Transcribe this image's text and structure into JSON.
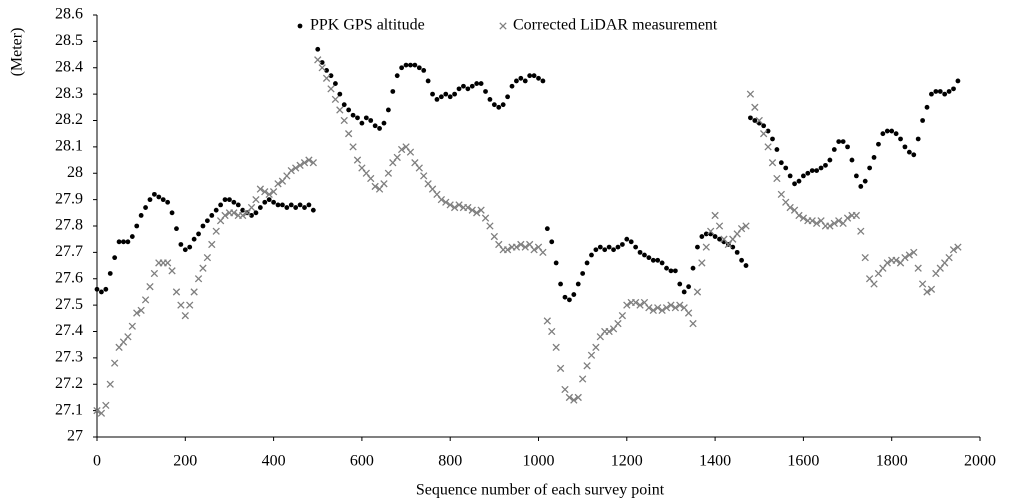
{
  "chart_data": {
    "type": "scatter",
    "x_label": "Sequence number of each survey point",
    "y_label": "(Meter)",
    "xlim": [
      0,
      2000
    ],
    "xticks": [
      0,
      200,
      400,
      600,
      800,
      1000,
      1200,
      1400,
      1600,
      1800,
      2000
    ],
    "ylim": [
      27,
      28.6
    ],
    "yticks": [
      27,
      27.1,
      27.2,
      27.3,
      27.4,
      27.5,
      27.6,
      27.7,
      27.8,
      27.9,
      28,
      28.1,
      28.2,
      28.3,
      28.4,
      28.5,
      28.6
    ],
    "legend": "top",
    "x": [
      0,
      10,
      20,
      30,
      40,
      50,
      60,
      70,
      80,
      90,
      100,
      110,
      120,
      130,
      140,
      150,
      160,
      170,
      180,
      190,
      200,
      210,
      220,
      230,
      240,
      250,
      260,
      270,
      280,
      290,
      300,
      310,
      320,
      330,
      340,
      350,
      360,
      370,
      380,
      390,
      400,
      410,
      420,
      430,
      440,
      450,
      460,
      470,
      480,
      490,
      500,
      510,
      520,
      530,
      540,
      550,
      560,
      570,
      580,
      590,
      600,
      610,
      620,
      630,
      640,
      650,
      660,
      670,
      680,
      690,
      700,
      710,
      720,
      730,
      740,
      750,
      760,
      770,
      780,
      790,
      800,
      810,
      820,
      830,
      840,
      850,
      860,
      870,
      880,
      890,
      900,
      910,
      920,
      930,
      940,
      950,
      960,
      970,
      980,
      990,
      1000,
      1010,
      1020,
      1030,
      1040,
      1050,
      1060,
      1070,
      1080,
      1090,
      1100,
      1110,
      1120,
      1130,
      1140,
      1150,
      1160,
      1170,
      1180,
      1190,
      1200,
      1210,
      1220,
      1230,
      1240,
      1250,
      1260,
      1270,
      1280,
      1290,
      1300,
      1310,
      1320,
      1330,
      1340,
      1350,
      1360,
      1370,
      1380,
      1390,
      1400,
      1410,
      1420,
      1430,
      1440,
      1450,
      1460,
      1470,
      1480,
      1490,
      1500,
      1510,
      1520,
      1530,
      1540,
      1550,
      1560,
      1570,
      1580,
      1590,
      1600,
      1610,
      1620,
      1630,
      1640,
      1650,
      1660,
      1670,
      1680,
      1690,
      1700,
      1710,
      1720,
      1730,
      1740,
      1750,
      1760,
      1770,
      1780,
      1790,
      1800,
      1810,
      1820,
      1830,
      1840,
      1850,
      1860,
      1870,
      1880,
      1890,
      1900,
      1910,
      1920,
      1930,
      1940,
      1950
    ],
    "series": [
      {
        "name": "PPK GPS altitude",
        "color": "#000000",
        "marker": "dot",
        "values": [
          27.56,
          27.55,
          27.56,
          27.62,
          27.68,
          27.74,
          27.74,
          27.74,
          27.76,
          27.8,
          27.84,
          27.87,
          27.9,
          27.92,
          27.91,
          27.9,
          27.89,
          27.85,
          27.79,
          27.73,
          27.71,
          27.72,
          27.75,
          27.77,
          27.8,
          27.82,
          27.84,
          27.86,
          27.88,
          27.9,
          27.9,
          27.89,
          27.88,
          27.86,
          27.85,
          27.84,
          27.85,
          27.87,
          27.89,
          27.9,
          27.89,
          27.88,
          27.88,
          27.87,
          27.88,
          27.87,
          27.88,
          27.87,
          27.88,
          27.86,
          28.47,
          28.42,
          28.39,
          28.37,
          28.34,
          28.3,
          28.26,
          28.24,
          28.22,
          28.21,
          28.19,
          28.21,
          28.2,
          28.18,
          28.17,
          28.19,
          28.24,
          28.31,
          28.37,
          28.4,
          28.41,
          28.41,
          28.41,
          28.4,
          28.39,
          28.35,
          28.3,
          28.28,
          28.29,
          28.3,
          28.29,
          28.3,
          28.32,
          28.33,
          28.32,
          28.33,
          28.34,
          28.34,
          28.31,
          28.28,
          28.26,
          28.25,
          28.26,
          28.29,
          28.33,
          28.35,
          28.36,
          28.35,
          28.37,
          28.37,
          28.36,
          28.35,
          27.79,
          27.74,
          27.66,
          27.58,
          27.53,
          27.52,
          27.54,
          27.58,
          27.62,
          27.66,
          27.69,
          27.71,
          27.72,
          27.71,
          27.72,
          27.71,
          27.72,
          27.73,
          27.75,
          27.74,
          27.72,
          27.7,
          27.69,
          27.68,
          27.67,
          27.67,
          27.66,
          27.64,
          27.63,
          27.63,
          27.58,
          27.55,
          27.57,
          27.64,
          27.72,
          27.76,
          27.77,
          27.77,
          27.76,
          27.75,
          27.74,
          27.73,
          27.72,
          27.7,
          27.67,
          27.65,
          28.21,
          28.2,
          28.19,
          28.18,
          28.16,
          28.13,
          28.09,
          28.04,
          28.02,
          27.99,
          27.96,
          27.97,
          27.99,
          28.0,
          28.01,
          28.01,
          28.02,
          28.03,
          28.05,
          28.09,
          28.12,
          28.12,
          28.1,
          28.05,
          27.99,
          27.95,
          27.97,
          28.02,
          28.06,
          28.11,
          28.15,
          28.16,
          28.16,
          28.15,
          28.13,
          28.1,
          28.08,
          28.07,
          28.13,
          28.2,
          28.25,
          28.3,
          28.31,
          28.31,
          28.3,
          28.31,
          28.32,
          28.35
        ]
      },
      {
        "name": "Corrected LiDAR measurement",
        "color": "#7f7f7f",
        "marker": "x",
        "values": [
          27.1,
          27.09,
          27.12,
          27.2,
          27.28,
          27.34,
          27.36,
          27.38,
          27.42,
          27.47,
          27.48,
          27.52,
          27.57,
          27.62,
          27.66,
          27.66,
          27.66,
          27.63,
          27.55,
          27.5,
          27.46,
          27.5,
          27.55,
          27.6,
          27.64,
          27.68,
          27.73,
          27.78,
          27.82,
          27.84,
          27.85,
          27.85,
          27.84,
          27.84,
          27.85,
          27.87,
          27.9,
          27.94,
          27.93,
          27.92,
          27.93,
          27.96,
          27.97,
          27.99,
          28.01,
          28.02,
          28.03,
          28.04,
          28.05,
          28.04,
          28.43,
          28.4,
          28.36,
          28.32,
          28.28,
          28.24,
          28.2,
          28.15,
          28.1,
          28.05,
          28.02,
          28.0,
          27.98,
          27.95,
          27.94,
          27.96,
          28.0,
          28.04,
          28.06,
          28.09,
          28.1,
          28.08,
          28.04,
          28.02,
          27.99,
          27.96,
          27.94,
          27.92,
          27.9,
          27.89,
          27.88,
          27.87,
          27.88,
          27.87,
          27.87,
          27.86,
          27.85,
          27.86,
          27.83,
          27.8,
          27.76,
          27.73,
          27.71,
          27.71,
          27.72,
          27.72,
          27.73,
          27.72,
          27.73,
          27.71,
          27.72,
          27.7,
          27.44,
          27.4,
          27.34,
          27.26,
          27.18,
          27.15,
          27.14,
          27.15,
          27.22,
          27.27,
          27.31,
          27.34,
          27.38,
          27.4,
          27.4,
          27.41,
          27.43,
          27.46,
          27.5,
          27.51,
          27.51,
          27.5,
          27.51,
          27.49,
          27.48,
          27.49,
          27.48,
          27.49,
          27.5,
          27.49,
          27.5,
          27.49,
          27.47,
          27.43,
          27.55,
          27.66,
          27.72,
          27.78,
          27.84,
          27.8,
          27.75,
          27.73,
          27.75,
          27.77,
          27.79,
          27.8,
          28.3,
          28.25,
          28.2,
          28.15,
          28.1,
          28.04,
          27.98,
          27.92,
          27.89,
          27.87,
          27.86,
          27.84,
          27.83,
          27.82,
          27.82,
          27.81,
          27.82,
          27.8,
          27.8,
          27.81,
          27.82,
          27.81,
          27.83,
          27.84,
          27.84,
          27.78,
          27.68,
          27.6,
          27.58,
          27.62,
          27.64,
          27.66,
          27.67,
          27.67,
          27.66,
          27.68,
          27.69,
          27.7,
          27.64,
          27.58,
          27.55,
          27.56,
          27.62,
          27.64,
          27.66,
          27.68,
          27.71,
          27.72
        ]
      }
    ]
  }
}
